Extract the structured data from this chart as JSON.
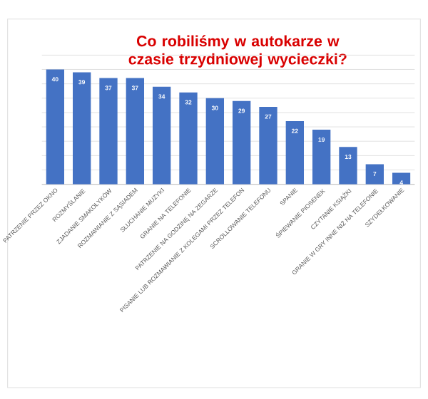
{
  "chart_data": {
    "type": "bar",
    "title": "Co robiliśmy w autokarze w czasie trzydniowej wycieczki?",
    "categories": [
      "PATRZENIE PRZEZ OKNO",
      "ROZMYŚLANIE",
      "ZJADANIE SMAKOŁYKÓW",
      "ROZMAWIANIE Z SĄSIADEM",
      "SŁUCHANIE MUZYKI",
      "GRANIE NA TELEFONIE",
      "PATRZENIE NA GODZINĘ NA ZEGARZE",
      "PISANIE LUB ROZMAWIANIE Z KOLEGAMI PRZEZ TELEFON",
      "SCROLLOWANIE TELEFONU",
      "SPANIE",
      "ŚPIEWANIE PIOSENEK",
      "CZYTANIE KSIĄŻKI",
      "GRANIE W GRY INNE NIŻ NA TELEFONIE",
      "SZYDEŁKOWANIE"
    ],
    "values": [
      40,
      39,
      37,
      37,
      34,
      32,
      30,
      29,
      27,
      22,
      19,
      13,
      7,
      4
    ],
    "color": "#4472c4",
    "data_labels": true,
    "grid": "y",
    "ylim": [
      0,
      45
    ],
    "yticks": [
      {
        "value": 0,
        "label": null
      },
      {
        "value": 5,
        "label": null
      },
      {
        "value": 10,
        "label": null
      },
      {
        "value": 15,
        "label": null
      },
      {
        "value": 20,
        "label": null
      },
      {
        "value": 25,
        "label": null
      },
      {
        "value": 30,
        "label": null
      },
      {
        "value": 35,
        "label": null
      },
      {
        "value": 40,
        "label": null
      },
      {
        "value": 45,
        "label": null
      }
    ],
    "tick_labels": "x"
  }
}
